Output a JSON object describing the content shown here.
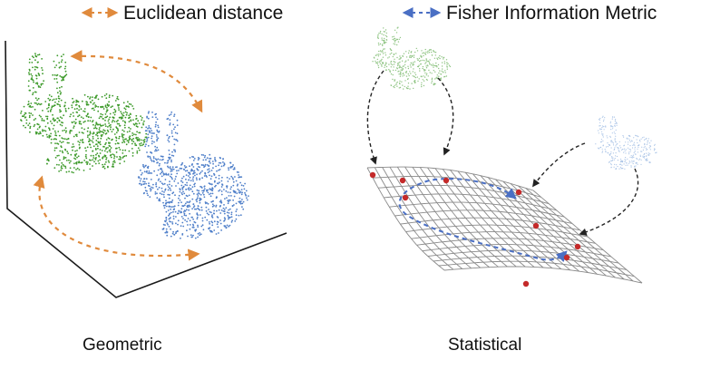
{
  "legend": {
    "euclidean": {
      "label": "Euclidean distance",
      "color": "#e08a3c"
    },
    "fisher": {
      "label": "Fisher Information Metric",
      "color": "#4a6fc4"
    }
  },
  "captions": {
    "left": "Geometric",
    "right": "Statistical"
  },
  "colors": {
    "green_bunny": "#3d9a2a",
    "blue_bunny": "#4f7fc9",
    "faded_green_bunny": "#8fc483",
    "faded_blue_bunny": "#a9c3e6",
    "axes": "#1a1a1a",
    "mesh": "#8a8a8a",
    "red_points": "#c42a2a",
    "dashed_arrow": "#333333"
  }
}
